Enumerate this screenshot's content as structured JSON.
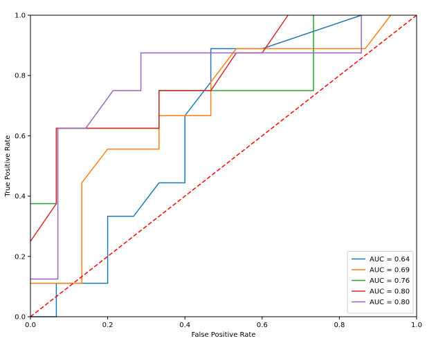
{
  "chart_data": {
    "type": "line",
    "title": "",
    "xlabel": "False Positive Rate",
    "ylabel": "True Positive Rate",
    "xlim": [
      0.0,
      1.0
    ],
    "ylim": [
      0.0,
      1.0
    ],
    "x_ticks": [
      0.0,
      0.2,
      0.4,
      0.6,
      0.8,
      1.0
    ],
    "y_ticks": [
      0.0,
      0.2,
      0.4,
      0.6,
      0.8,
      1.0
    ],
    "x_tick_labels": [
      "0.0",
      "0.2",
      "0.4",
      "0.6",
      "0.8",
      "1.0"
    ],
    "y_tick_labels": [
      "0.0",
      "0.2",
      "0.4",
      "0.6",
      "0.8",
      "1.0"
    ],
    "grid": false,
    "legend_position": "lower-right",
    "series": [
      {
        "name": "AUC = 0.64",
        "color": "#1f77b4",
        "points": [
          [
            0,
            0
          ],
          [
            0.067,
            0
          ],
          [
            0.067,
            0.111
          ],
          [
            0.2,
            0.111
          ],
          [
            0.2,
            0.333
          ],
          [
            0.267,
            0.333
          ],
          [
            0.333,
            0.444
          ],
          [
            0.4,
            0.444
          ],
          [
            0.4,
            0.667
          ],
          [
            0.467,
            0.778
          ],
          [
            0.467,
            0.889
          ],
          [
            0.6,
            0.889
          ],
          [
            0.857,
            1.0
          ]
        ]
      },
      {
        "name": "AUC = 0.69",
        "color": "#ff7f0e",
        "points": [
          [
            0,
            0.111
          ],
          [
            0.133,
            0.111
          ],
          [
            0.133,
            0.444
          ],
          [
            0.2,
            0.556
          ],
          [
            0.333,
            0.556
          ],
          [
            0.333,
            0.667
          ],
          [
            0.467,
            0.667
          ],
          [
            0.467,
            0.778
          ],
          [
            0.533,
            0.889
          ],
          [
            0.867,
            0.889
          ],
          [
            0.933,
            1.0
          ]
        ]
      },
      {
        "name": "AUC = 0.76",
        "color": "#2ca02c",
        "points": [
          [
            0,
            0.375
          ],
          [
            0.067,
            0.375
          ],
          [
            0.067,
            0.625
          ],
          [
            0.333,
            0.625
          ],
          [
            0.333,
            0.75
          ],
          [
            0.733,
            0.75
          ],
          [
            0.733,
            1.0
          ]
        ]
      },
      {
        "name": "AUC = 0.80",
        "color": "#d62728",
        "points": [
          [
            0,
            0.25
          ],
          [
            0.067,
            0.375
          ],
          [
            0.067,
            0.625
          ],
          [
            0.333,
            0.625
          ],
          [
            0.333,
            0.75
          ],
          [
            0.467,
            0.75
          ],
          [
            0.533,
            0.875
          ],
          [
            0.6,
            0.875
          ],
          [
            0.667,
            1.0
          ]
        ]
      },
      {
        "name": "AUC = 0.80",
        "color": "#9467bd",
        "points": [
          [
            0,
            0.125
          ],
          [
            0.071,
            0.125
          ],
          [
            0.071,
            0.625
          ],
          [
            0.143,
            0.625
          ],
          [
            0.214,
            0.75
          ],
          [
            0.286,
            0.75
          ],
          [
            0.286,
            0.875
          ],
          [
            0.857,
            0.875
          ],
          [
            0.857,
            1.0
          ]
        ]
      }
    ],
    "reference_line": {
      "color": "#ff0000",
      "style": "dashed",
      "points": [
        [
          0,
          0
        ],
        [
          1,
          1
        ]
      ]
    }
  }
}
